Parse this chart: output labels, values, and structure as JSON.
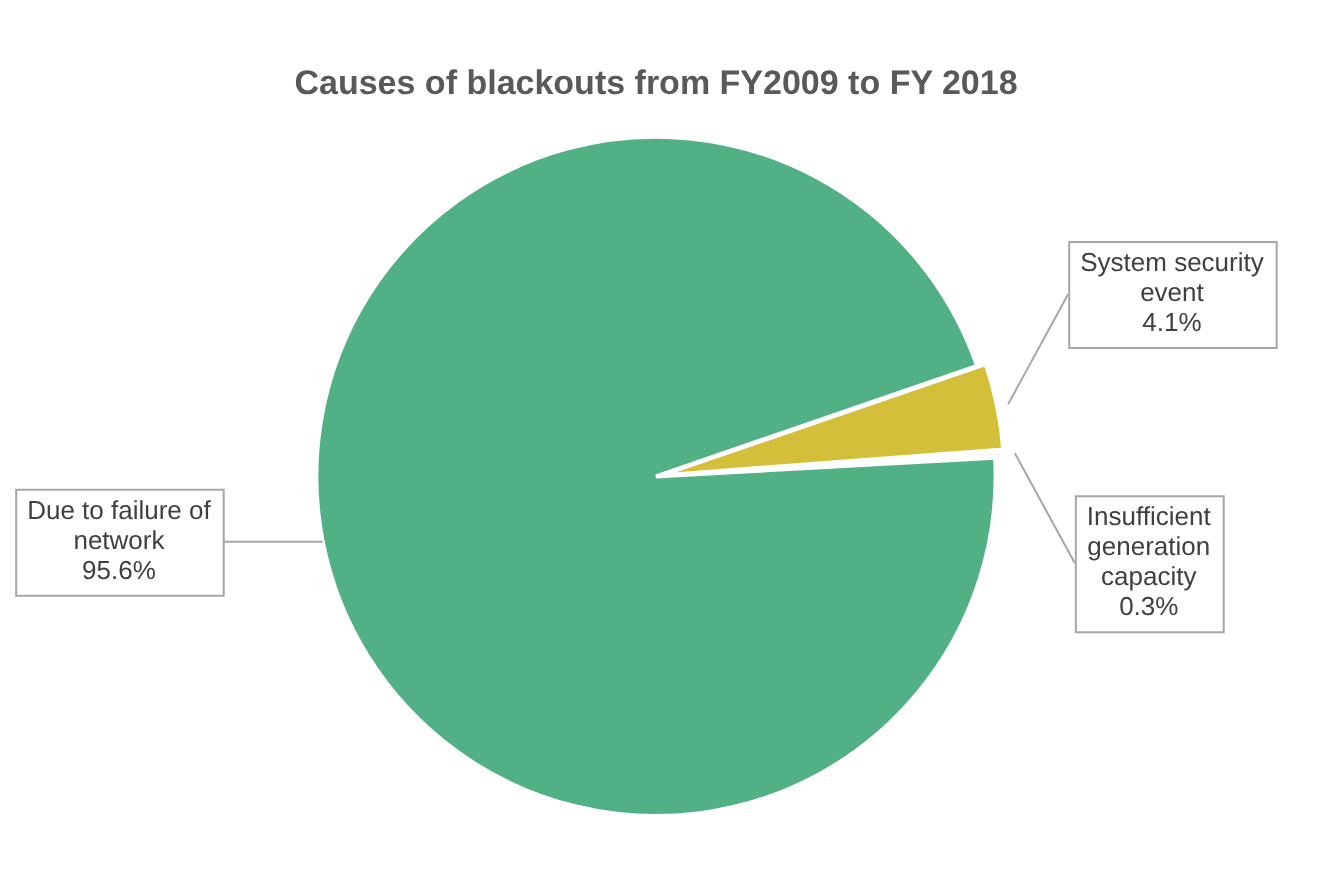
{
  "chart_data": {
    "type": "pie",
    "title": "Causes of blackouts from FY2009 to FY 2018",
    "categories": [
      "System security event",
      "Insufficient generation capacity",
      "Due to failure of network"
    ],
    "values": [
      4.1,
      0.3,
      95.6
    ],
    "value_labels": [
      "4.1%",
      "0.3%",
      "95.6%"
    ],
    "colors": [
      "#d4bf3a",
      "#e8e8e8",
      "#52b184"
    ],
    "legend": false
  }
}
